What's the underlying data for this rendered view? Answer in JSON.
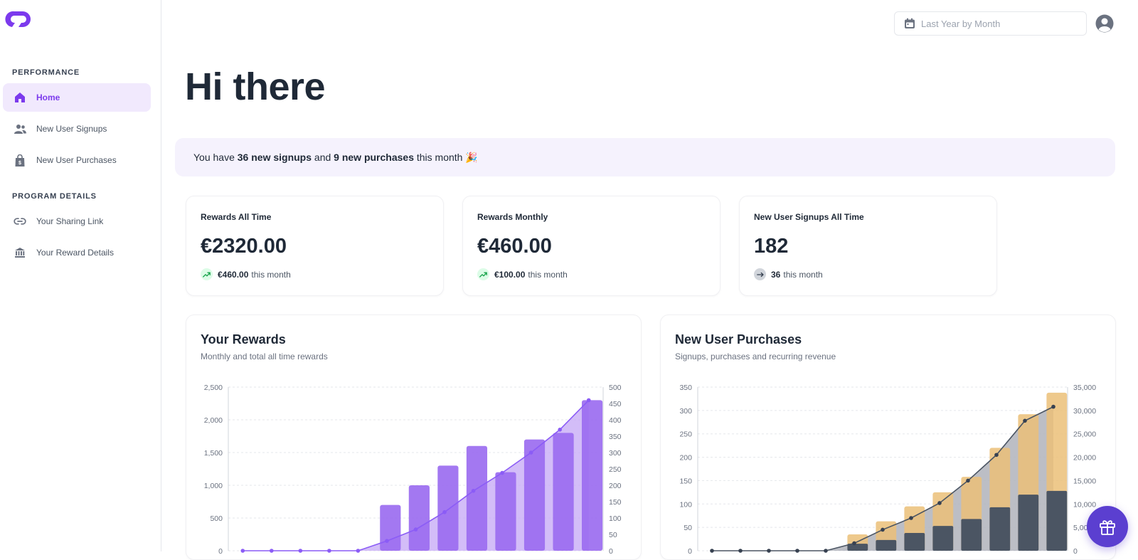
{
  "sidebar": {
    "sections": [
      {
        "title": "PERFORMANCE"
      },
      {
        "title": "PROGRAM DETAILS"
      }
    ],
    "items": [
      {
        "label": "Home",
        "icon": "home-icon"
      },
      {
        "label": "New User Signups",
        "icon": "users-icon"
      },
      {
        "label": "New User Purchases",
        "icon": "shopping-bag-icon"
      },
      {
        "label": "Your Sharing Link",
        "icon": "link-icon"
      },
      {
        "label": "Your Reward Details",
        "icon": "bank-icon"
      }
    ]
  },
  "header": {
    "date_filter_placeholder": "Last Year by Month",
    "greeting": "Hi there"
  },
  "banner": {
    "prefix": "You have",
    "signups": "36 new signups",
    "middle": "and",
    "purchases": "9 new purchases",
    "suffix": "this month 🎉"
  },
  "stats": [
    {
      "label": "Rewards All Time",
      "value": "€2320.00",
      "delta_value": "€460.00",
      "delta_text": "this month",
      "trend": "up"
    },
    {
      "label": "Rewards Monthly",
      "value": "€460.00",
      "delta_value": "€100.00",
      "delta_text": "this month",
      "trend": "up"
    },
    {
      "label": "New User Signups All Time",
      "value": "182",
      "delta_value": "36",
      "delta_text": "this month",
      "trend": "flat"
    }
  ],
  "colors": {
    "accent": "#7c3aed",
    "purple_bar": "#9b6cf0",
    "orange_bar": "#ebbf78",
    "dark_bar": "#4b5563",
    "gray_bar": "#b0b3bb"
  },
  "chart_data": [
    {
      "type": "bar",
      "title": "Your Rewards",
      "subtitle": "Monthly and total all time rewards",
      "left_ticks": [
        "0",
        "500",
        "1,000",
        "1,500",
        "2,000",
        "2,500"
      ],
      "right_ticks": [
        "0",
        "50",
        "100",
        "150",
        "200",
        "250",
        "300",
        "350",
        "400",
        "450",
        "500"
      ],
      "ylim": [
        0,
        2500
      ],
      "y2lim": [
        0,
        500
      ],
      "series": [
        {
          "type": "bar",
          "values": [
            0,
            0,
            0,
            0,
            0,
            700,
            1000,
            1300,
            1600,
            1200,
            1700,
            1800,
            2300
          ]
        },
        {
          "type": "line",
          "values": [
            0,
            0,
            0,
            0,
            0,
            30,
            65,
            118,
            183,
            238,
            300,
            370,
            460
          ]
        }
      ]
    },
    {
      "type": "bar",
      "title": "New User Purchases",
      "subtitle": "Signups, purchases and recurring revenue",
      "left_ticks": [
        "0",
        "50",
        "100",
        "150",
        "200",
        "250",
        "300",
        "350"
      ],
      "right_ticks": [
        "0",
        "5,000",
        "10,000",
        "15,000",
        "20,000",
        "25,000",
        "30,000",
        "35,000"
      ],
      "ylim": [
        0,
        350
      ],
      "y2lim": [
        0,
        35000
      ],
      "series": [
        {
          "type": "bar",
          "values": [
            0,
            0,
            0,
            0,
            0,
            35,
            63,
            95,
            125,
            158,
            220,
            292,
            338
          ]
        },
        {
          "type": "bar",
          "values": [
            0,
            0,
            0,
            0,
            0,
            15,
            23,
            38,
            53,
            68,
            93,
            120,
            128
          ]
        },
        {
          "type": "line",
          "values": [
            0,
            0,
            0,
            0,
            0,
            1600,
            4500,
            7000,
            10200,
            15000,
            20500,
            27800,
            30800
          ]
        }
      ]
    }
  ]
}
